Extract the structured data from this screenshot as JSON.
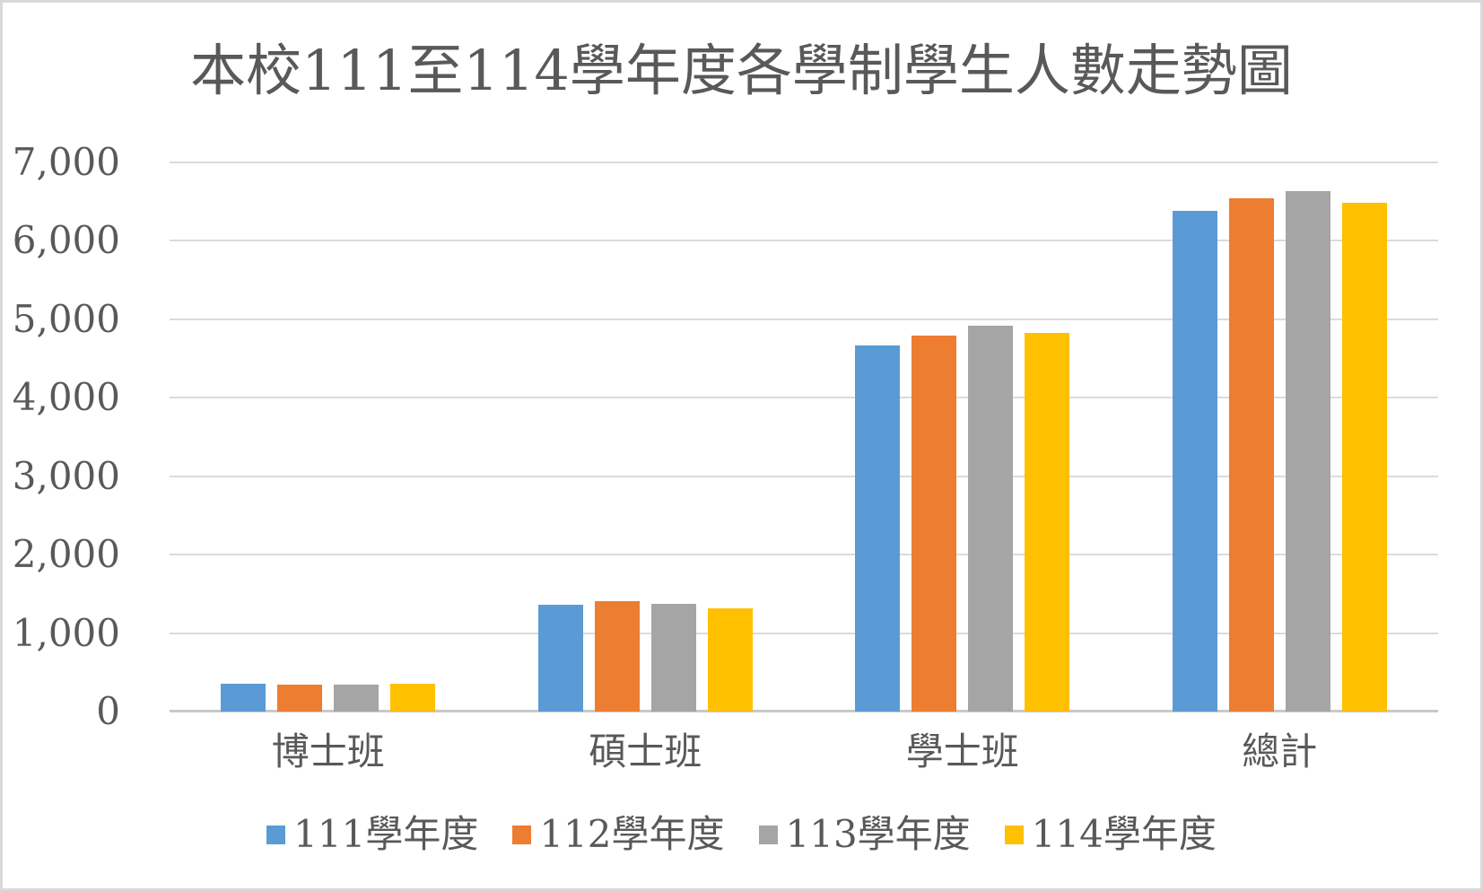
{
  "title": "本校111至114學年度各學制學生人數走勢圖",
  "colors": {
    "text": "#595959",
    "gridline": "#dbdbdb",
    "axis_line": "#c9c9c9",
    "background": "#ffffff",
    "frame_border": "#d9d9d9",
    "series": [
      "#5B9BD5",
      "#ED7D31",
      "#A5A5A5",
      "#FFC000"
    ]
  },
  "chart_data": {
    "type": "bar",
    "title": "本校111至114學年度各學制學生人數走勢圖",
    "categories": [
      "博士班",
      "碩士班",
      "學士班",
      "總計"
    ],
    "series": [
      {
        "name": "111學年度",
        "color": "#5B9BD5",
        "values": [
          350,
          1360,
          4670,
          6380
        ]
      },
      {
        "name": "112學年度",
        "color": "#ED7D31",
        "values": [
          340,
          1410,
          4790,
          6540
        ]
      },
      {
        "name": "113學年度",
        "color": "#A5A5A5",
        "values": [
          340,
          1370,
          4920,
          6630
        ]
      },
      {
        "name": "114學年度",
        "color": "#FFC000",
        "values": [
          350,
          1310,
          4830,
          6490
        ]
      }
    ],
    "ylim": [
      0,
      7000
    ],
    "ytick_step": 1000,
    "ytick_labels": [
      "0",
      "1,000",
      "2,000",
      "3,000",
      "4,000",
      "5,000",
      "6,000",
      "7,000"
    ],
    "grid": true,
    "legend_position": "bottom"
  }
}
